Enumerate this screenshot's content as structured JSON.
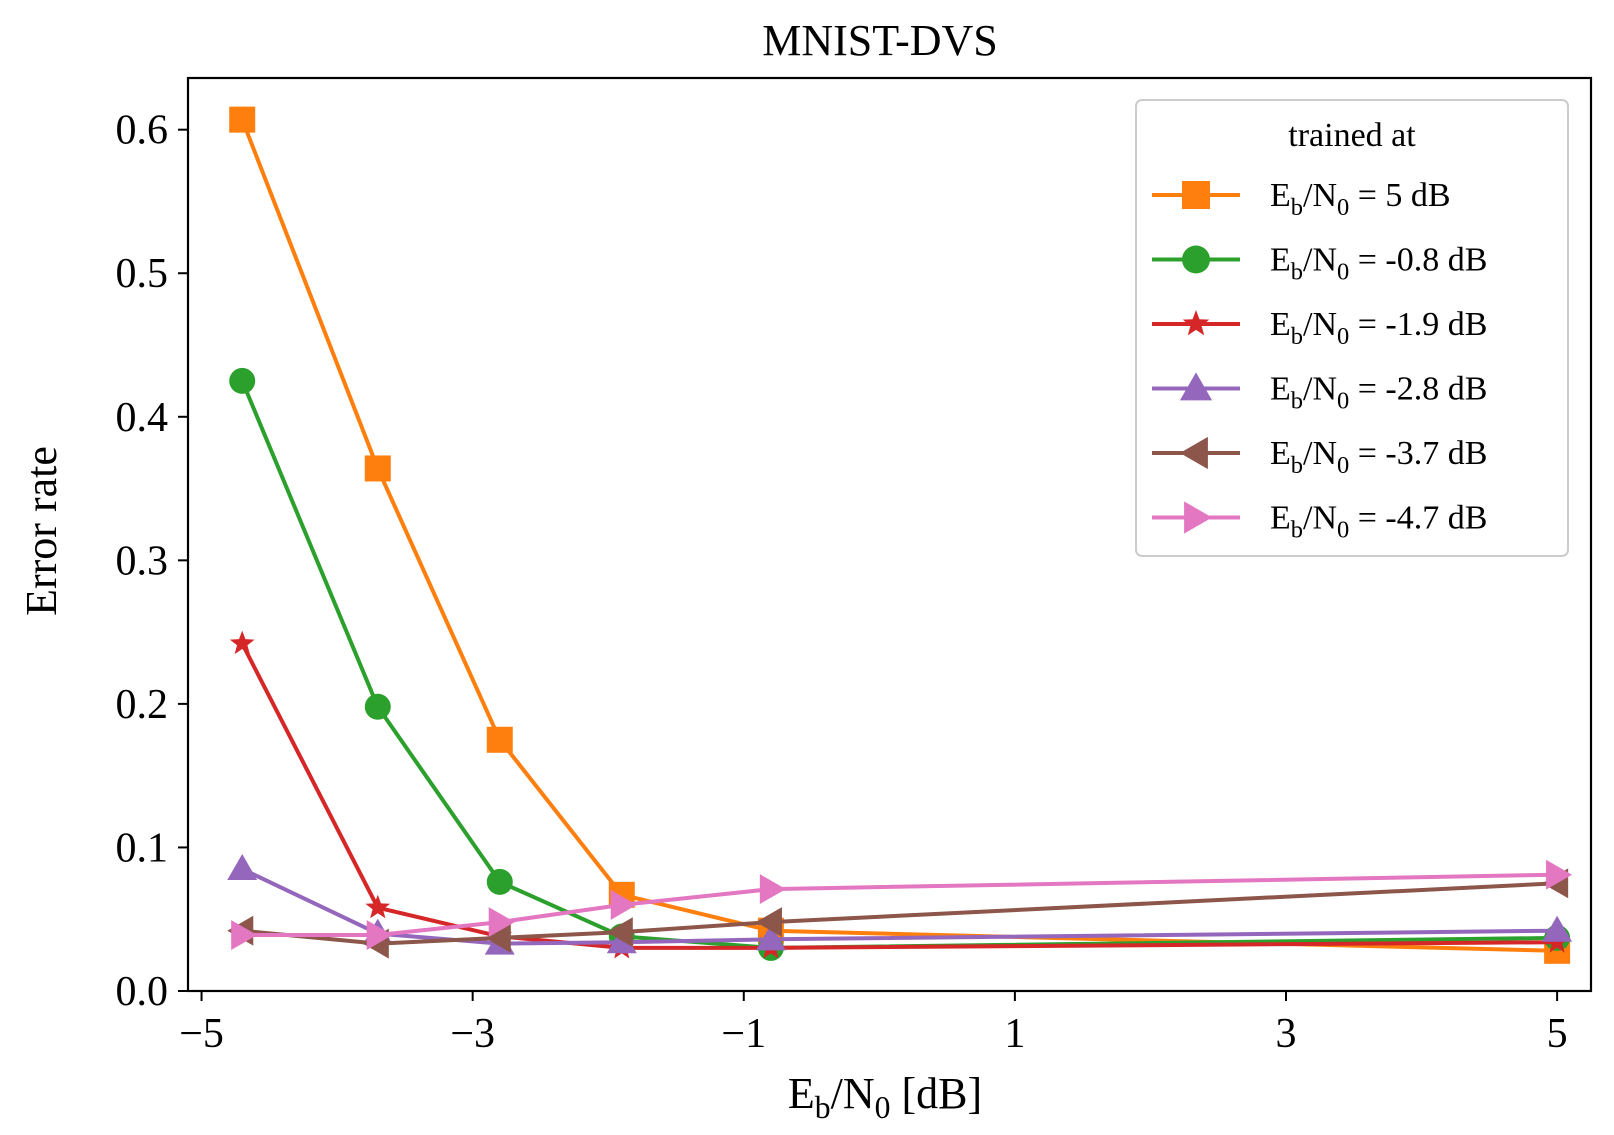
{
  "chart_data": {
    "type": "line",
    "title": "MNIST-DVS",
    "xlabel": {
      "base": "E",
      "sub1": "b",
      "mid": "/N",
      "sub2": "0",
      "tail": " [dB]"
    },
    "ylabel": "Error rate",
    "xlim": [
      -5.1,
      5.25
    ],
    "ylim": [
      0.0,
      0.636
    ],
    "xticks": [
      -5,
      -3,
      -1,
      1,
      3,
      5
    ],
    "xtick_labels": [
      "−5",
      "−3",
      "−1",
      "1",
      "3",
      "5"
    ],
    "yticks": [
      0.0,
      0.1,
      0.2,
      0.3,
      0.4,
      0.5,
      0.6
    ],
    "ytick_labels": [
      "0.0",
      "0.1",
      "0.2",
      "0.3",
      "0.4",
      "0.5",
      "0.6"
    ],
    "x": [
      -4.7,
      -3.7,
      -2.8,
      -1.9,
      -0.8,
      5
    ],
    "legend": {
      "title": "trained at",
      "placement": "upper right"
    },
    "series": [
      {
        "name": "Eb/N0 = 5  dB",
        "label_value": "= 5  dB",
        "color": "#ff7f0e",
        "marker": "square",
        "values": [
          0.607,
          0.364,
          0.175,
          0.067,
          0.042,
          0.028
        ]
      },
      {
        "name": "Eb/N0 = -0.8  dB",
        "label_value": "= -0.8  dB",
        "color": "#2ca02c",
        "marker": "circle",
        "values": [
          0.425,
          0.198,
          0.076,
          0.038,
          0.03,
          0.037
        ]
      },
      {
        "name": "Eb/N0 = -1.9  dB",
        "label_value": "= -1.9  dB",
        "color": "#d62728",
        "marker": "star",
        "values": [
          0.242,
          0.058,
          0.038,
          0.03,
          0.03,
          0.034
        ]
      },
      {
        "name": "Eb/N0 = -2.8  dB",
        "label_value": "= -2.8  dB",
        "color": "#9467bd",
        "marker": "triangle-up",
        "values": [
          0.085,
          0.04,
          0.033,
          0.034,
          0.036,
          0.042
        ]
      },
      {
        "name": "Eb/N0 = -3.7  dB",
        "label_value": "= -3.7  dB",
        "color": "#8c564b",
        "marker": "triangle-left",
        "values": [
          0.042,
          0.033,
          0.037,
          0.041,
          0.048,
          0.075
        ]
      },
      {
        "name": "Eb/N0 = -4.7 dB",
        "label_value": "= -4.7 dB",
        "color": "#e377c2",
        "marker": "triangle-right",
        "values": [
          0.039,
          0.039,
          0.048,
          0.06,
          0.071,
          0.081
        ]
      }
    ]
  }
}
